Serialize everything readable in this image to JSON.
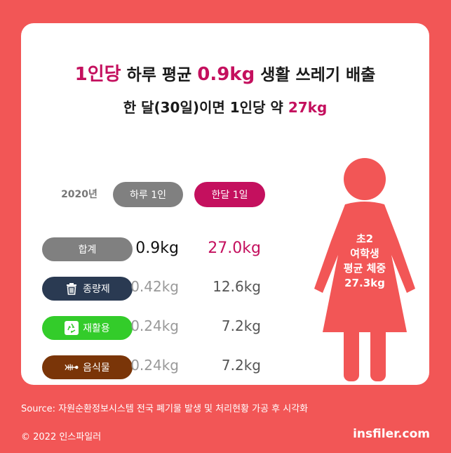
{
  "headline": {
    "line1": {
      "part1": "1인당",
      "part2": " 하루 평균 ",
      "part3": "0.9kg",
      "part4": " 생활 쓰레기 배출"
    },
    "line2": {
      "part1": "한 달(30일)이면 1인당 약 ",
      "part2": "27kg"
    }
  },
  "table": {
    "year": "2020년",
    "col_day": "하루 1인",
    "col_month": "한달 1일",
    "rows": [
      {
        "label": "합계",
        "day": "0.9kg",
        "month": "27.0kg"
      },
      {
        "label": "종량제",
        "day": "0.42kg",
        "month": "12.6kg",
        "icon": "trash-can-icon"
      },
      {
        "label": "재활용",
        "day": "0.24kg",
        "month": "7.2kg",
        "icon": "recycle-icon"
      },
      {
        "label": "음식물",
        "day": "0.24kg",
        "month": "7.2kg",
        "icon": "fish-bone-icon"
      }
    ]
  },
  "figure": {
    "line1": "초2",
    "line2": "여학생",
    "line3": "평균 체중",
    "line4": "27.3kg"
  },
  "footer": {
    "source": "Source: 자원순환정보시스템 전국 폐기물 발생 및 처리현황 가공 후 시각화",
    "copyright": "© 2022  인스파일러",
    "site": "insfiler.com"
  },
  "colors": {
    "background": "#f25656",
    "accent": "#c4105e",
    "grey_pill": "#808080",
    "volume_pill": "#2a3a52",
    "recycle_pill": "#33cc2a",
    "food_pill": "#7a3508"
  }
}
